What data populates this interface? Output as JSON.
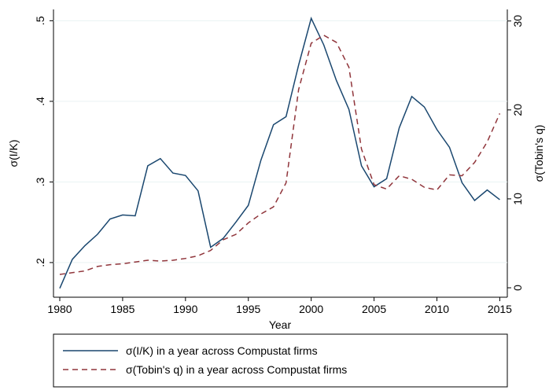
{
  "chart_data": {
    "type": "line",
    "x_label": "Year",
    "y_label": "σ(I/K)",
    "y2_label": "σ(Tobin's q)",
    "x": [
      1980,
      1981,
      1982,
      1983,
      1984,
      1985,
      1986,
      1987,
      1988,
      1989,
      1990,
      1991,
      1992,
      1993,
      1994,
      1995,
      1996,
      1997,
      1998,
      1999,
      2000,
      2001,
      2002,
      2003,
      2004,
      2005,
      2006,
      2007,
      2008,
      2009,
      2010,
      2011,
      2012,
      2013,
      2014,
      2015
    ],
    "series": [
      {
        "name": "σ(I/K) in a year across Compustat firms",
        "color": "#1a476f",
        "dash": false,
        "values": [
          0.168,
          0.204,
          0.221,
          0.235,
          0.254,
          0.259,
          0.258,
          0.32,
          0.329,
          0.311,
          0.308,
          0.289,
          0.219,
          0.23,
          0.25,
          0.271,
          0.327,
          0.371,
          0.381,
          0.445,
          0.503,
          0.47,
          0.426,
          0.39,
          0.32,
          0.294,
          0.304,
          0.367,
          0.406,
          0.393,
          0.365,
          0.343,
          0.299,
          0.277,
          0.29,
          0.278
        ]
      },
      {
        "name": "σ(Tobin's q) in a year across Compustat firms",
        "color": "#90353b",
        "dash": true,
        "axis": "y2",
        "values": [
          1.5,
          1.7,
          1.9,
          2.4,
          2.6,
          2.7,
          2.9,
          3.1,
          3.0,
          3.1,
          3.3,
          3.6,
          4.2,
          5.4,
          6.0,
          7.3,
          8.3,
          9.1,
          11.8,
          22.3,
          27.5,
          28.4,
          27.6,
          24.8,
          15.6,
          11.6,
          11.1,
          12.6,
          12.2,
          11.3,
          11.0,
          12.7,
          12.6,
          14.1,
          16.4,
          19.6
        ]
      }
    ],
    "xlim": [
      1979.5,
      2015.6
    ],
    "xticks": [
      1980,
      1985,
      1990,
      1995,
      2000,
      2005,
      2010,
      2015
    ],
    "ylim": [
      0.157,
      0.514
    ],
    "yticks": [
      {
        "value": 0.2,
        "label": ".2"
      },
      {
        "value": 0.3,
        "label": ".3"
      },
      {
        "value": 0.4,
        "label": ".4"
      },
      {
        "value": 0.5,
        "label": ".5"
      }
    ],
    "y2lim": [
      -1.06,
      31.3
    ],
    "y2ticks": [
      0,
      10,
      20,
      30
    ],
    "grid": true,
    "legend": "bottom"
  }
}
